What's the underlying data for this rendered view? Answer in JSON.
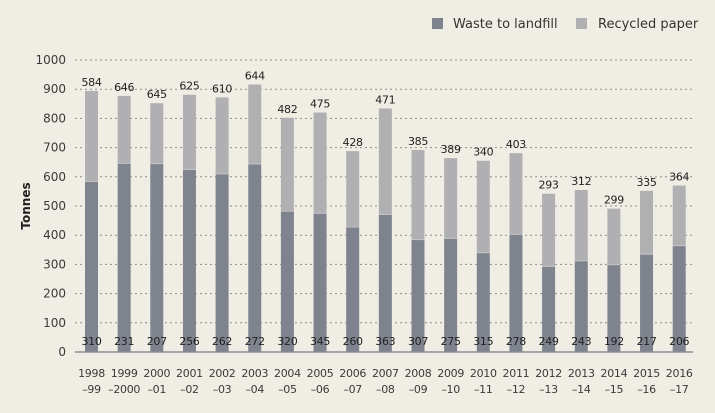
{
  "chart_data": {
    "type": "bar",
    "stacked": true,
    "title": "",
    "xlabel": "",
    "ylabel": "Tonnes",
    "ylim": [
      0,
      1000
    ],
    "yticks": [
      0,
      100,
      200,
      300,
      400,
      500,
      600,
      700,
      800,
      900,
      1000
    ],
    "grid": true,
    "legend_position": "top-right",
    "categories": [
      [
        "1998",
        "–99"
      ],
      [
        "1999",
        "–2000"
      ],
      [
        "2000",
        "–01"
      ],
      [
        "2001",
        "–02"
      ],
      [
        "2002",
        "–03"
      ],
      [
        "2003",
        "–04"
      ],
      [
        "2004",
        "–05"
      ],
      [
        "2005",
        "–06"
      ],
      [
        "2006",
        "–07"
      ],
      [
        "2007",
        "–08"
      ],
      [
        "2008",
        "–09"
      ],
      [
        "2009",
        "–10"
      ],
      [
        "2010",
        "–11"
      ],
      [
        "2011",
        "–12"
      ],
      [
        "2012",
        "–13"
      ],
      [
        "2013",
        "–14"
      ],
      [
        "2014",
        "–15"
      ],
      [
        "2015",
        "–16"
      ],
      [
        "2016",
        "–17"
      ]
    ],
    "series": [
      {
        "name": "Waste to landfill",
        "color": "#7e838e",
        "values": [
          584,
          646,
          645,
          625,
          610,
          644,
          482,
          475,
          428,
          471,
          385,
          389,
          340,
          403,
          293,
          312,
          299,
          335,
          364
        ]
      },
      {
        "name": "Recycled paper",
        "color": "#b0b0b2",
        "values": [
          310,
          231,
          207,
          256,
          262,
          272,
          320,
          345,
          260,
          363,
          307,
          275,
          315,
          278,
          249,
          243,
          192,
          217,
          206
        ]
      }
    ]
  }
}
